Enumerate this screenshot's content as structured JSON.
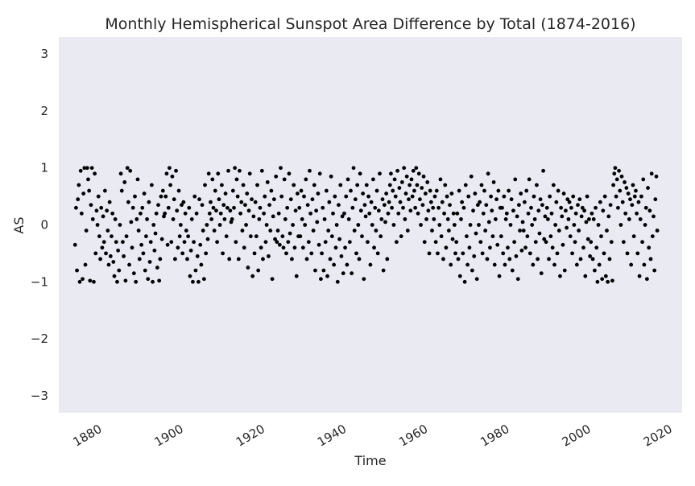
{
  "chart_data": {
    "type": "scatter",
    "title": "Monthly Hemispherical Sunspot Area Difference by Total (1874-2016)",
    "xlabel": "Time",
    "ylabel": "AS",
    "xlim": [
      1870,
      2023
    ],
    "ylim": [
      -3.3,
      3.3
    ],
    "x_ticks": [
      1880,
      1900,
      1920,
      1940,
      1960,
      1980,
      2000,
      2020
    ],
    "y_ticks": [
      3,
      2,
      1,
      0,
      -1,
      -2,
      -3
    ],
    "y_tick_labels": [
      "3",
      "2",
      "1",
      "0",
      "−1",
      "−2",
      "−3"
    ],
    "grid": false,
    "legend": "none",
    "colors": {
      "background": "#eaeaf2",
      "points": "#000000"
    },
    "series": [
      {
        "x_start": 1874.0,
        "x_end": 2016.9,
        "values": [
          -0.35,
          0.3,
          -0.8,
          0.45,
          0.7,
          -1.0,
          0.95,
          0.2,
          -0.95,
          0.55,
          1.0,
          -0.7,
          -0.1,
          1.0,
          0.8,
          0.6,
          -0.98,
          0.35,
          1.0,
          0.1,
          -1.0,
          0.9,
          -0.5,
          0.25,
          0.0,
          0.5,
          -0.2,
          -0.6,
          0.3,
          -0.4,
          0.15,
          -0.3,
          0.6,
          -0.5,
          0.25,
          -0.1,
          -0.7,
          0.4,
          -0.55,
          -0.2,
          0.2,
          -0.65,
          -0.9,
          0.1,
          -0.3,
          -1.0,
          -0.45,
          -0.8,
          0.0,
          0.9,
          0.6,
          -0.3,
          -0.55,
          0.75,
          -0.98,
          -0.2,
          1.0,
          0.4,
          -0.7,
          0.95,
          0.05,
          -0.4,
          0.3,
          -0.85,
          0.5,
          -1.0,
          0.1,
          0.8,
          -0.1,
          -0.6,
          0.2,
          -0.35,
          0.3,
          -0.5,
          0.55,
          -0.8,
          -0.2,
          0.1,
          -0.95,
          0.4,
          -0.65,
          -0.3,
          0.7,
          -1.0,
          0.0,
          -0.45,
          -0.15,
          0.2,
          -0.75,
          0.35,
          -0.98,
          -0.6,
          0.5,
          -0.25,
          0.6,
          0.15,
          0.2,
          0.5,
          0.9,
          -0.35,
          0.3,
          1.0,
          0.7,
          -0.3,
          0.85,
          0.1,
          0.45,
          -0.6,
          0.95,
          0.25,
          -0.4,
          0.6,
          -0.2,
          0.0,
          0.35,
          -0.5,
          0.4,
          -0.3,
          0.2,
          -0.1,
          -0.6,
          -0.2,
          0.3,
          -0.9,
          -0.45,
          0.1,
          -1.0,
          -0.3,
          0.5,
          -0.8,
          0.2,
          -0.55,
          -1.0,
          0.45,
          -0.35,
          -0.7,
          0.35,
          -0.1,
          -0.95,
          0.7,
          -0.5,
          0.0,
          -0.25,
          0.9,
          0.2,
          0.4,
          0.1,
          0.8,
          0.3,
          -0.1,
          0.6,
          0.25,
          -0.3,
          0.9,
          0.45,
          0.0,
          0.2,
          0.7,
          -0.5,
          0.35,
          0.1,
          0.55,
          -0.2,
          0.3,
          0.95,
          -0.6,
          0.25,
          0.05,
          0.1,
          0.6,
          0.3,
          1.0,
          -0.3,
          0.8,
          0.5,
          -0.6,
          0.95,
          0.2,
          0.4,
          -0.1,
          0.7,
          -0.4,
          0.35,
          0.0,
          0.55,
          -0.75,
          0.25,
          0.9,
          -0.2,
          0.45,
          -0.9,
          0.15,
          -0.5,
          0.4,
          -0.2,
          0.7,
          -0.8,
          0.1,
          0.3,
          -0.4,
          0.95,
          -0.6,
          0.2,
          0.5,
          -0.3,
          0.0,
          0.75,
          -0.55,
          0.35,
          -0.1,
          0.6,
          -0.95,
          0.15,
          0.45,
          -0.25,
          0.85,
          -0.3,
          -0.1,
          0.2,
          -0.35,
          1.0,
          0.5,
          -0.2,
          -0.4,
          0.8,
          0.1,
          -0.5,
          0.3,
          -0.3,
          0.9,
          -0.15,
          0.45,
          -0.6,
          0.0,
          0.7,
          -0.4,
          0.25,
          -0.9,
          0.55,
          -0.2,
          0.3,
          -0.2,
          0.6,
          0.1,
          -0.4,
          0.5,
          0.0,
          0.8,
          -0.6,
          0.35,
          -0.3,
          0.95,
          0.2,
          -0.5,
          0.45,
          -0.1,
          0.7,
          -0.8,
          0.25,
          0.05,
          0.55,
          -0.35,
          0.9,
          -0.95,
          -0.5,
          0.3,
          -0.8,
          0.1,
          -0.3,
          0.6,
          -0.9,
          -0.1,
          0.4,
          -0.6,
          0.85,
          -0.2,
          0.2,
          -0.7,
          0.5,
          -0.4,
          0.0,
          -1.0,
          0.35,
          -0.25,
          0.7,
          -0.55,
          0.15,
          -0.85,
          0.2,
          -0.4,
          0.5,
          -0.7,
          0.8,
          0.1,
          -0.3,
          0.6,
          -0.85,
          0.3,
          1.0,
          -0.1,
          0.45,
          -0.5,
          0.7,
          0.0,
          -0.6,
          0.9,
          0.25,
          -0.2,
          0.55,
          -0.95,
          0.35,
          0.15,
          0.7,
          -0.3,
          0.5,
          0.2,
          -0.7,
          0.4,
          0.0,
          0.8,
          -0.4,
          0.3,
          -0.1,
          0.6,
          -0.5,
          0.25,
          0.9,
          -0.2,
          0.1,
          0.45,
          -0.8,
          0.35,
          0.05,
          0.55,
          -0.6,
          0.2,
          0.4,
          0.7,
          0.9,
          0.3,
          0.6,
          0.0,
          0.8,
          0.5,
          -0.3,
          0.95,
          0.2,
          0.65,
          0.4,
          -0.2,
          0.75,
          0.3,
          1.0,
          0.1,
          0.55,
          0.85,
          -0.1,
          0.45,
          0.7,
          0.25,
          0.8,
          0.5,
          0.95,
          0.6,
          0.3,
          1.0,
          0.7,
          0.2,
          0.9,
          0.45,
          0.0,
          0.65,
          0.35,
          0.85,
          -0.3,
          0.55,
          0.1,
          0.75,
          0.25,
          -0.5,
          0.6,
          0.4,
          -0.1,
          0.3,
          0.1,
          0.5,
          -0.3,
          0.6,
          -0.5,
          0.3,
          0.0,
          0.8,
          -0.2,
          0.4,
          -0.6,
          0.2,
          0.7,
          -0.4,
          0.5,
          0.1,
          -0.1,
          0.35,
          -0.7,
          0.55,
          -0.25,
          0.2,
          0.0,
          -0.5,
          -0.3,
          0.2,
          -0.6,
          0.6,
          -0.9,
          0.1,
          0.4,
          -0.5,
          0.3,
          -1.0,
          0.7,
          -0.2,
          -0.7,
          0.5,
          -0.4,
          0.0,
          0.85,
          -0.8,
          0.25,
          -0.55,
          0.55,
          -0.15,
          -0.95,
          0.35,
          0.0,
          0.4,
          -0.3,
          0.7,
          -0.5,
          0.2,
          0.6,
          -0.1,
          0.35,
          -0.6,
          0.9,
          0.05,
          -0.4,
          0.5,
          0.25,
          -0.2,
          0.75,
          -0.7,
          0.1,
          0.45,
          -0.35,
          0.6,
          -0.9,
          0.3,
          -0.2,
          0.3,
          -0.5,
          0.5,
          -0.7,
          0.1,
          0.2,
          -0.4,
          0.6,
          -0.6,
          0.0,
          0.45,
          -0.8,
          0.25,
          -0.3,
          0.8,
          -0.55,
          0.15,
          -0.95,
          0.35,
          -0.1,
          0.55,
          -0.45,
          0.05,
          -0.1,
          0.4,
          -0.4,
          0.6,
          -0.2,
          0.2,
          0.8,
          -0.5,
          0.3,
          0.0,
          -0.7,
          0.5,
          0.1,
          -0.3,
          0.7,
          -0.6,
          0.25,
          -0.15,
          0.45,
          -0.85,
          0.35,
          0.95,
          -0.25,
          0.15,
          -0.3,
          0.3,
          0.1,
          -0.6,
          0.5,
          -0.2,
          0.2,
          -0.4,
          0.7,
          -0.7,
          0.0,
          0.4,
          -0.5,
          0.6,
          -0.1,
          -0.9,
          0.3,
          0.15,
          -0.35,
          0.55,
          -0.8,
          0.25,
          -0.05,
          0.45,
          0.1,
          0.4,
          -0.2,
          0.3,
          -0.5,
          0.5,
          0.0,
          -0.3,
          0.2,
          -0.7,
          0.35,
          -0.1,
          0.45,
          -0.6,
          0.15,
          0.3,
          -0.4,
          0.25,
          -0.9,
          0.05,
          0.5,
          -0.25,
          0.1,
          -0.55,
          -0.3,
          0.2,
          -0.6,
          0.1,
          -0.8,
          0.3,
          -0.4,
          -1.0,
          0.0,
          -0.7,
          0.4,
          -0.2,
          -0.95,
          0.25,
          -0.5,
          0.5,
          -0.9,
          -0.1,
          -1.0,
          0.15,
          -0.6,
          0.35,
          -0.3,
          -0.98,
          0.7,
          0.9,
          1.0,
          0.5,
          0.8,
          0.3,
          0.95,
          0.6,
          0.0,
          0.85,
          0.4,
          -0.3,
          0.75,
          0.2,
          0.65,
          -0.5,
          0.55,
          0.1,
          0.45,
          -0.7,
          0.35,
          0.7,
          -0.2,
          0.5,
          0.6,
          0.2,
          -0.5,
          0.4,
          -0.9,
          0.1,
          0.5,
          -0.3,
          0.8,
          -0.7,
          0.0,
          0.3,
          -0.95,
          0.65,
          -0.4,
          0.25,
          -0.6,
          0.9,
          -0.2,
          0.15,
          -0.8,
          0.45,
          0.85,
          -0.1
        ]
      }
    ]
  }
}
